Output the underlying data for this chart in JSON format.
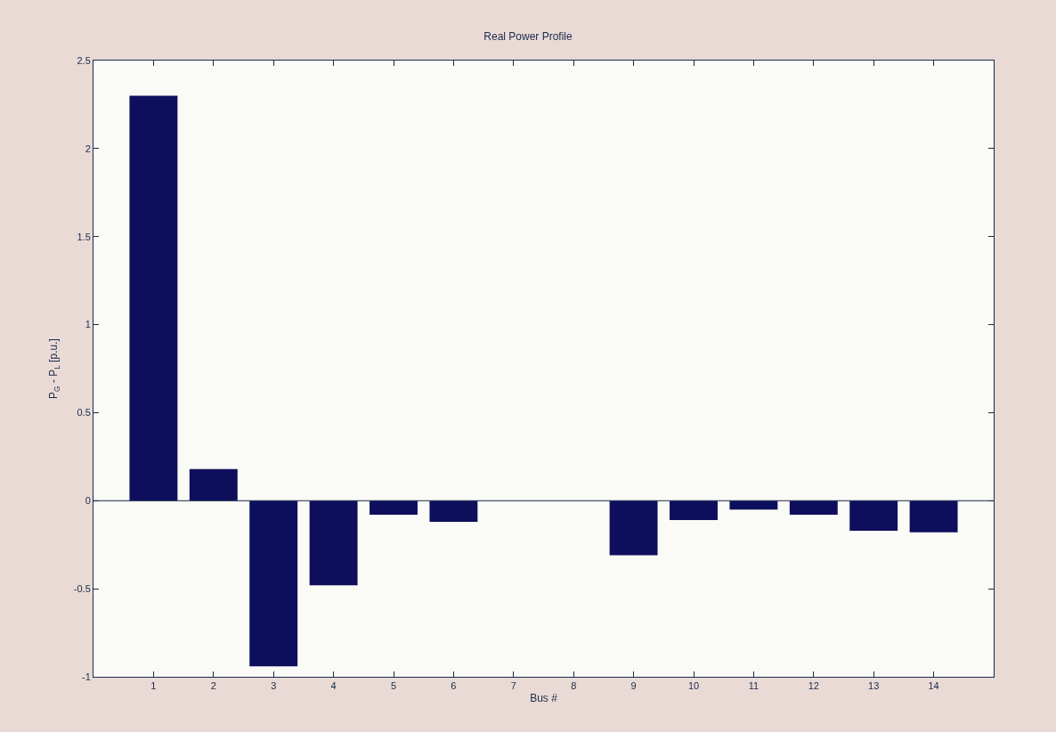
{
  "chart_data": {
    "type": "bar",
    "title": "Real Power Profile",
    "xlabel": "Bus #",
    "ylabel": "P$_{G}$ - P$_{L}$ [p.u.]",
    "x": [
      1,
      2,
      3,
      4,
      5,
      6,
      7,
      8,
      9,
      10,
      11,
      12,
      13,
      14
    ],
    "values": [
      2.3,
      0.18,
      -0.94,
      -0.48,
      -0.08,
      -0.12,
      0,
      0,
      -0.31,
      -0.11,
      -0.05,
      -0.08,
      -0.17,
      -0.18
    ],
    "color": "#0e0f5c",
    "xlim": [
      0,
      15
    ],
    "xticks": [
      1,
      2,
      3,
      4,
      5,
      6,
      7,
      8,
      9,
      10,
      11,
      12,
      13,
      14
    ],
    "ylim": [
      -1,
      2.5
    ],
    "yticks": [
      -1,
      -0.5,
      0,
      0.5,
      1,
      1.5,
      2,
      2.5
    ],
    "ref_lines": [
      {
        "axis": "y",
        "value": 0
      }
    ],
    "grid": false
  }
}
